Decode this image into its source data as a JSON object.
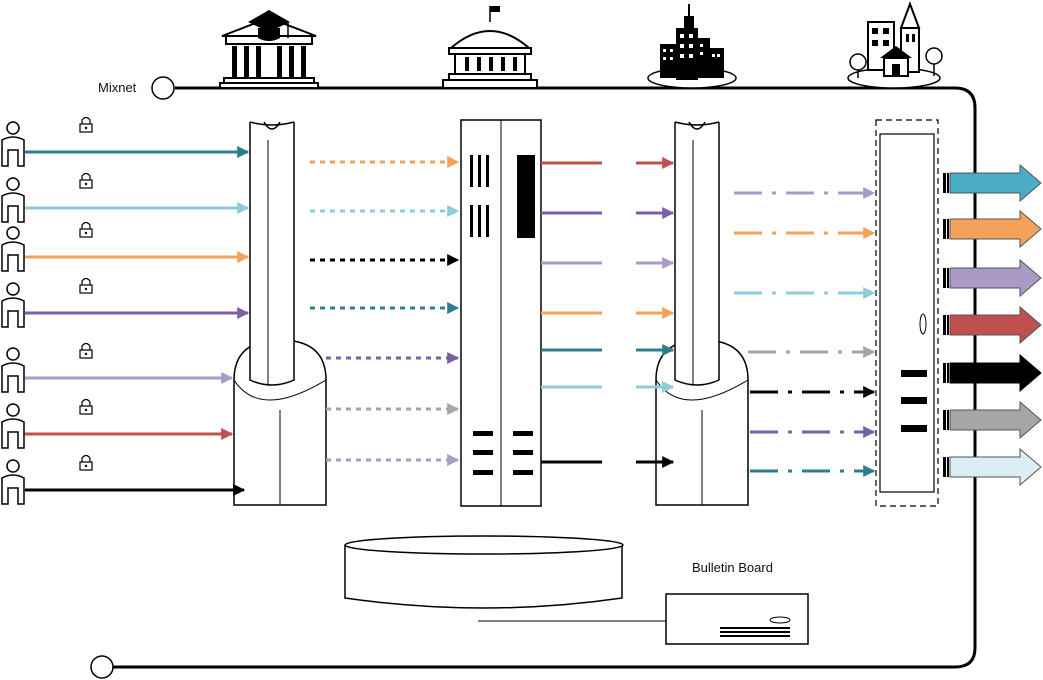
{
  "labels": {
    "mixnet": "Mixnet",
    "bulletin_board": "Bulletin Board"
  },
  "colors": {
    "teal": "#2e7d8f",
    "light_blue": "#8ecbdc",
    "orange": "#f4a15a",
    "purple": "#7b5ea7",
    "lavender": "#a99bc6",
    "red": "#c0504d",
    "black": "#000000",
    "gray": "#a6a6a6",
    "very_light_blue": "#dbeef4",
    "arrow_teal": "#4bacc6"
  },
  "voter_colors": [
    "teal",
    "light_blue",
    "orange",
    "purple",
    "lavender",
    "red",
    "black"
  ],
  "stage1_out": [
    "orange",
    "light_blue",
    "black",
    "teal",
    "purple",
    "gray",
    "lavender"
  ],
  "stage2_out": [
    "red",
    "purple",
    "lavender",
    "orange",
    "teal",
    "light_blue",
    "black"
  ],
  "stage3_out": [
    "lavender",
    "orange",
    "light_blue",
    "gray",
    "black",
    "purple",
    "teal"
  ],
  "final_arrows": [
    "arrow_teal",
    "orange",
    "lavender",
    "red",
    "black",
    "gray",
    "very_light_blue"
  ],
  "icons": {
    "voter": "person-icon",
    "lock": "padlock-icon",
    "buildings": [
      "university-icon",
      "government-building-icon",
      "city-icon",
      "town-icon"
    ]
  }
}
